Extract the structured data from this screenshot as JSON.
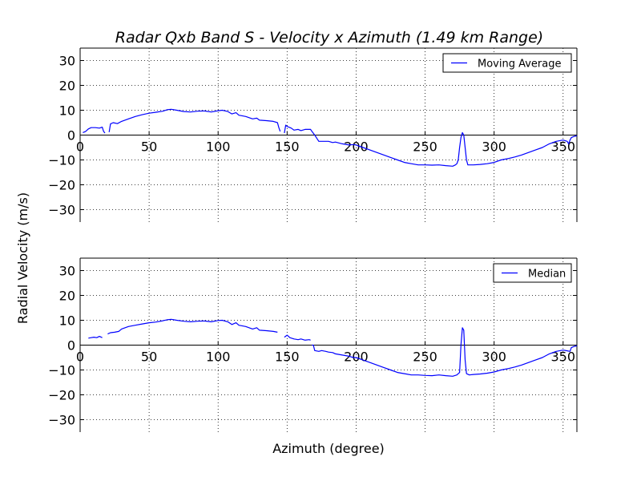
{
  "figure": {
    "title": "Radar Qxb Band S - Velocity x Azimuth (1.49 km Range)",
    "ylabel": "Radial Velocity (m/s)",
    "xlabel": "Azimuth (degree)"
  },
  "colors": {
    "line": "#0000ff",
    "axis": "#000000",
    "grid": "#000000",
    "background": "#ffffff"
  },
  "chart_data": [
    {
      "type": "line",
      "title": "Radar Qxb Band S - Velocity x Azimuth (1.49 km Range)",
      "xlabel": "Azimuth (degree)",
      "ylabel": "Radial Velocity (m/s)",
      "xlim": [
        0,
        360
      ],
      "ylim": [
        -35,
        35
      ],
      "x_ticks": [
        0,
        50,
        100,
        150,
        200,
        250,
        300,
        350
      ],
      "x_tick_labels": [
        "0",
        "50",
        "100",
        "150",
        "200",
        "250",
        "300",
        "350"
      ],
      "y_ticks": [
        30,
        20,
        10,
        0,
        -10,
        -20,
        -30
      ],
      "y_tick_labels": [
        "30",
        "20",
        "10",
        "0",
        "−10",
        "−20",
        "−30"
      ],
      "grid": true,
      "legend": "top-right",
      "series": [
        {
          "name": "Moving Average",
          "color": "#0000ff",
          "segments": [
            [
              [
                2,
                1
              ],
              [
                4,
                1.5
              ],
              [
                6,
                2.5
              ],
              [
                8,
                3
              ],
              [
                11,
                3
              ],
              [
                14,
                2.8
              ],
              [
                16,
                3.2
              ],
              [
                17,
                1.5
              ],
              [
                18,
                0.8
              ]
            ],
            [
              [
                21,
                1.2
              ],
              [
                22,
                4.5
              ],
              [
                24,
                5
              ],
              [
                27,
                4.6
              ],
              [
                30,
                5.5
              ],
              [
                35,
                6.5
              ],
              [
                40,
                7.5
              ],
              [
                45,
                8.2
              ],
              [
                50,
                8.8
              ],
              [
                55,
                9.2
              ],
              [
                60,
                9.6
              ],
              [
                63,
                10.2
              ],
              [
                66,
                10.4
              ],
              [
                70,
                10
              ],
              [
                75,
                9.5
              ],
              [
                80,
                9.3
              ],
              [
                85,
                9.6
              ],
              [
                90,
                9.7
              ],
              [
                95,
                9.3
              ],
              [
                100,
                9.8
              ],
              [
                103,
                10
              ],
              [
                107,
                9.5
              ],
              [
                110,
                8.5
              ],
              [
                113,
                9
              ],
              [
                115,
                8
              ],
              [
                120,
                7.5
              ],
              [
                125,
                6.5
              ],
              [
                128,
                6.8
              ],
              [
                130,
                6
              ],
              [
                135,
                5.8
              ],
              [
                140,
                5.5
              ],
              [
                143,
                5
              ],
              [
                144,
                3
              ],
              [
                145,
                1.5
              ]
            ],
            [
              [
                148,
                0.8
              ],
              [
                149,
                4
              ],
              [
                150,
                3.5
              ],
              [
                153,
                2.8
              ],
              [
                155,
                2
              ],
              [
                158,
                2.3
              ],
              [
                160,
                1.8
              ],
              [
                163,
                2.3
              ],
              [
                167,
                2.3
              ],
              [
                168,
                1.5
              ],
              [
                170,
                0
              ],
              [
                173,
                -2.5
              ],
              [
                175,
                -2.5
              ],
              [
                180,
                -2.5
              ],
              [
                183,
                -3
              ],
              [
                185,
                -2.8
              ],
              [
                190,
                -3.5
              ],
              [
                195,
                -4
              ],
              [
                198,
                -3.8
              ],
              [
                200,
                -4
              ],
              [
                205,
                -5
              ],
              [
                210,
                -6
              ],
              [
                215,
                -7
              ],
              [
                220,
                -8
              ],
              [
                225,
                -9
              ],
              [
                230,
                -10
              ],
              [
                235,
                -11
              ],
              [
                240,
                -11.5
              ],
              [
                245,
                -12
              ],
              [
                250,
                -12
              ],
              [
                255,
                -12.1
              ],
              [
                260,
                -12
              ],
              [
                265,
                -12.3
              ],
              [
                270,
                -12.5
              ],
              [
                272,
                -12
              ],
              [
                273,
                -11.5
              ],
              [
                274,
                -10
              ],
              [
                275,
                -5
              ],
              [
                276,
                -1
              ],
              [
                277,
                1
              ],
              [
                278,
                0
              ],
              [
                279,
                -5
              ],
              [
                280,
                -10
              ],
              [
                281,
                -12
              ],
              [
                283,
                -12
              ],
              [
                285,
                -12
              ],
              [
                290,
                -11.8
              ],
              [
                295,
                -11.5
              ],
              [
                300,
                -11
              ],
              [
                305,
                -10
              ],
              [
                310,
                -9.5
              ],
              [
                315,
                -8.8
              ],
              [
                320,
                -8
              ],
              [
                325,
                -7
              ],
              [
                330,
                -6
              ],
              [
                335,
                -5
              ],
              [
                340,
                -3.5
              ],
              [
                345,
                -2.5
              ],
              [
                350,
                -2
              ],
              [
                353,
                -2.5
              ],
              [
                354,
                -3.5
              ],
              [
                355,
                -2
              ],
              [
                356,
                -1
              ],
              [
                358,
                -0.5
              ],
              [
                360,
                -0.3
              ]
            ]
          ]
        }
      ]
    },
    {
      "type": "line",
      "xlabel": "Azimuth (degree)",
      "ylabel": "Radial Velocity (m/s)",
      "xlim": [
        0,
        360
      ],
      "ylim": [
        -35,
        35
      ],
      "x_ticks": [
        0,
        50,
        100,
        150,
        200,
        250,
        300,
        350
      ],
      "x_tick_labels": [
        "0",
        "50",
        "100",
        "150",
        "200",
        "250",
        "300",
        "350"
      ],
      "y_ticks": [
        30,
        20,
        10,
        0,
        -10,
        -20,
        -30
      ],
      "y_tick_labels": [
        "30",
        "20",
        "10",
        "0",
        "−10",
        "−20",
        "−30"
      ],
      "grid": true,
      "legend": "top-right",
      "series": [
        {
          "name": "Median",
          "color": "#0000ff",
          "segments": [
            [
              [
                6,
                2.8
              ],
              [
                8,
                3
              ],
              [
                10,
                3.2
              ],
              [
                12,
                3
              ],
              [
                14,
                3.5
              ],
              [
                16,
                3
              ]
            ],
            [
              [
                20,
                4.5
              ],
              [
                22,
                5
              ],
              [
                25,
                5.2
              ],
              [
                28,
                5.5
              ],
              [
                30,
                6.5
              ],
              [
                35,
                7.5
              ],
              [
                40,
                8
              ],
              [
                45,
                8.5
              ],
              [
                50,
                9
              ],
              [
                55,
                9.3
              ],
              [
                60,
                9.8
              ],
              [
                63,
                10.2
              ],
              [
                66,
                10.4
              ],
              [
                70,
                10
              ],
              [
                75,
                9.6
              ],
              [
                80,
                9.4
              ],
              [
                85,
                9.6
              ],
              [
                90,
                9.7
              ],
              [
                95,
                9.4
              ],
              [
                100,
                9.9
              ],
              [
                103,
                10
              ],
              [
                107,
                9.4
              ],
              [
                110,
                8.3
              ],
              [
                113,
                9
              ],
              [
                115,
                8
              ],
              [
                120,
                7.5
              ],
              [
                125,
                6.5
              ],
              [
                128,
                7
              ],
              [
                130,
                6
              ],
              [
                135,
                5.8
              ],
              [
                140,
                5.5
              ],
              [
                143,
                5.2
              ]
            ],
            [
              [
                148,
                3.2
              ],
              [
                150,
                4
              ],
              [
                152,
                3
              ],
              [
                155,
                2.5
              ],
              [
                158,
                2.2
              ],
              [
                160,
                2.5
              ],
              [
                163,
                2
              ],
              [
                166,
                2.2
              ],
              [
                167,
                2
              ]
            ],
            [
              [
                168,
                0
              ],
              [
                169,
                0
              ],
              [
                170,
                -2.2
              ],
              [
                173,
                -2.5
              ],
              [
                175,
                -2.2
              ],
              [
                178,
                -2.5
              ],
              [
                180,
                -2.8
              ],
              [
                183,
                -3
              ],
              [
                185,
                -3.5
              ],
              [
                190,
                -4
              ],
              [
                195,
                -4.5
              ],
              [
                198,
                -5
              ],
              [
                200,
                -5
              ],
              [
                205,
                -6
              ],
              [
                210,
                -7
              ],
              [
                215,
                -8
              ],
              [
                220,
                -9
              ],
              [
                225,
                -10
              ],
              [
                230,
                -11
              ],
              [
                235,
                -11.5
              ],
              [
                240,
                -12
              ],
              [
                245,
                -12
              ],
              [
                250,
                -12.2
              ],
              [
                255,
                -12.3
              ],
              [
                260,
                -12
              ],
              [
                265,
                -12.3
              ],
              [
                270,
                -12.5
              ],
              [
                273,
                -12
              ],
              [
                275,
                -11
              ],
              [
                276,
                0
              ],
              [
                277,
                7
              ],
              [
                278,
                6
              ],
              [
                279,
                -6
              ],
              [
                280,
                -11.5
              ],
              [
                282,
                -12
              ],
              [
                285,
                -11.8
              ],
              [
                290,
                -11.6
              ],
              [
                295,
                -11.3
              ],
              [
                300,
                -10.8
              ],
              [
                305,
                -10
              ],
              [
                310,
                -9.5
              ],
              [
                315,
                -8.8
              ],
              [
                320,
                -8
              ],
              [
                325,
                -7
              ],
              [
                330,
                -6
              ],
              [
                335,
                -5
              ],
              [
                340,
                -3.5
              ],
              [
                345,
                -2.5
              ],
              [
                350,
                -2
              ],
              [
                353,
                -2.3
              ],
              [
                355,
                -2.5
              ],
              [
                356,
                -1
              ],
              [
                358,
                -0.5
              ],
              [
                360,
                -0.3
              ]
            ]
          ]
        }
      ]
    }
  ]
}
